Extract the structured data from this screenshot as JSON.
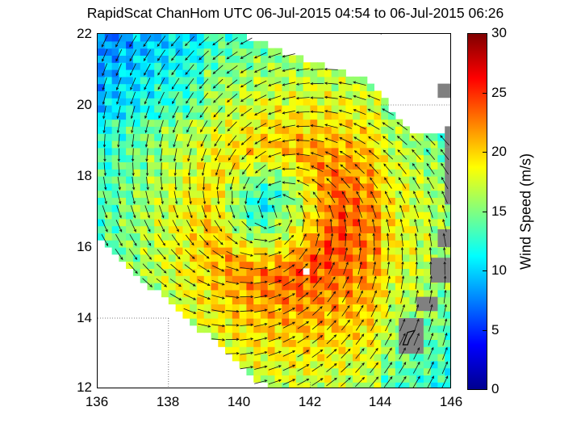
{
  "chart_data": {
    "type": "heatmap",
    "title": "RapidScat ChanHom UTC 06-Jul-2015 04:54 to 06-Jul-2015 06:26",
    "xlabel": "",
    "ylabel": "",
    "xlim": [
      136,
      146
    ],
    "ylim": [
      12,
      22
    ],
    "xticks": [
      136,
      138,
      140,
      142,
      144,
      146
    ],
    "yticks": [
      12,
      14,
      16,
      18,
      20,
      22
    ],
    "grid": "partial dotted at 138E/14N, 142E, 144E, 20N",
    "colorbar": {
      "label": "Wind Speed (m/s)",
      "range": [
        0,
        30
      ],
      "ticks": [
        0,
        5,
        10,
        15,
        20,
        25,
        30
      ],
      "colormap": "jet"
    },
    "storm_center": {
      "lon": 141.0,
      "lat": 17.0
    },
    "max_wind_region": {
      "lon_range": [
        140.5,
        143
      ],
      "lat_range": [
        14.8,
        18.6
      ],
      "speed_ms": [
        22,
        27
      ]
    },
    "features": [
      "Cyclonic (counter-clockwise) wind vector field around Typhoon Chan-Hom",
      "Low-wind eye near 141E, 17N (approx 12-14 m/s)",
      "Strongest winds (orange/red 22-27 m/s) in ring east and south of center",
      "Outer winds 10-15 m/s (cyan/green)",
      "Land masked (gray) along 145-146E: Mariana Islands incl. Guam near 144.7E, 13.4N"
    ]
  },
  "header": {
    "title": "RapidScat ChanHom UTC 06-Jul-2015 04:54 to 06-Jul-2015 06:26"
  },
  "axes": {
    "x_labels": [
      "136",
      "138",
      "140",
      "142",
      "144",
      "146"
    ],
    "y_labels": [
      "22",
      "20",
      "18",
      "16",
      "14",
      "12"
    ]
  },
  "colorbar": {
    "label": "Wind Speed (m/s)",
    "tick_labels": [
      "30",
      "25",
      "20",
      "15",
      "10",
      "5",
      "0"
    ]
  }
}
